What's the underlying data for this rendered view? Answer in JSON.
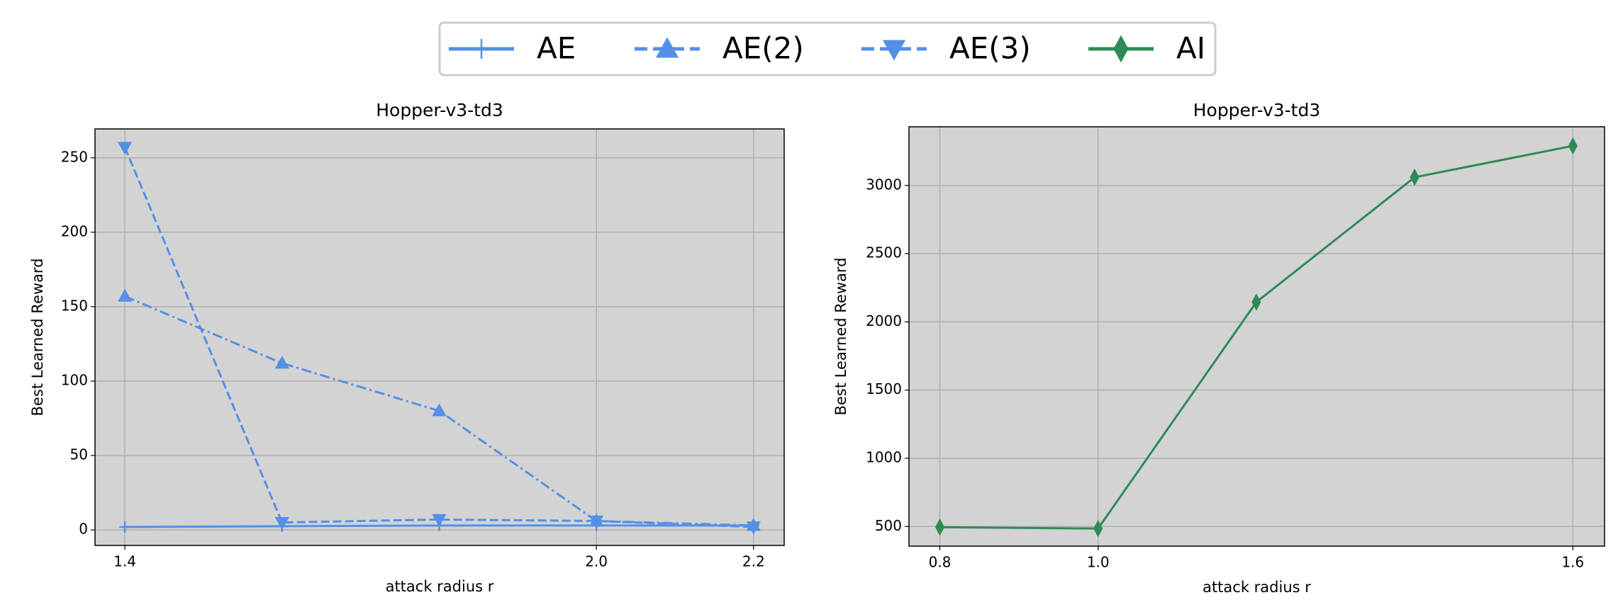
{
  "chart_data": [
    {
      "type": "line",
      "title": "Hopper-v3-td3",
      "xlabel": "attack radius r",
      "ylabel": "Best Learned Reward",
      "x": [
        1.4,
        1.6,
        1.8,
        2.0,
        2.2
      ],
      "series": [
        {
          "name": "AE",
          "color": "#5590e6",
          "marker": "plus",
          "linestyle": "solid",
          "values": [
            2,
            2.5,
            3,
            3,
            3
          ]
        },
        {
          "name": "AE(2)",
          "color": "#5590e6",
          "marker": "triangle-up",
          "linestyle": "dashdot",
          "values": [
            157,
            112,
            80,
            6,
            3
          ]
        },
        {
          "name": "AE(3)",
          "color": "#5590e6",
          "marker": "triangle-down",
          "linestyle": "dashed",
          "values": [
            257,
            5,
            7,
            6,
            2
          ]
        }
      ],
      "xlim": [
        1.362,
        2.239
      ],
      "xticks": [
        1.4,
        {
          "value": 2,
          "label": "2.0"
        },
        2.2
      ],
      "ylim": [
        -10.4,
        269.4
      ],
      "yticks": [
        0,
        50,
        100,
        150,
        200,
        250
      ],
      "grid": true
    },
    {
      "type": "line",
      "title": "Hopper-v3-td3",
      "xlabel": "attack radius r",
      "ylabel": "Best Learned Reward",
      "x": [
        0.8,
        1.0,
        1.2,
        1.4,
        1.6
      ],
      "series": [
        {
          "name": "AI",
          "color": "#2e8b57",
          "marker": "diamond",
          "linestyle": "solid",
          "values": [
            495,
            485,
            2145,
            3060,
            3290
          ]
        }
      ],
      "xlim": [
        0.761,
        1.64
      ],
      "xticks": [
        0.8,
        {
          "value": 1,
          "label": "1.0"
        },
        1.6
      ],
      "ylim": [
        356,
        3430
      ],
      "yticks": [
        500,
        1000,
        1500,
        2000,
        2500,
        3000
      ],
      "grid": true
    }
  ]
}
